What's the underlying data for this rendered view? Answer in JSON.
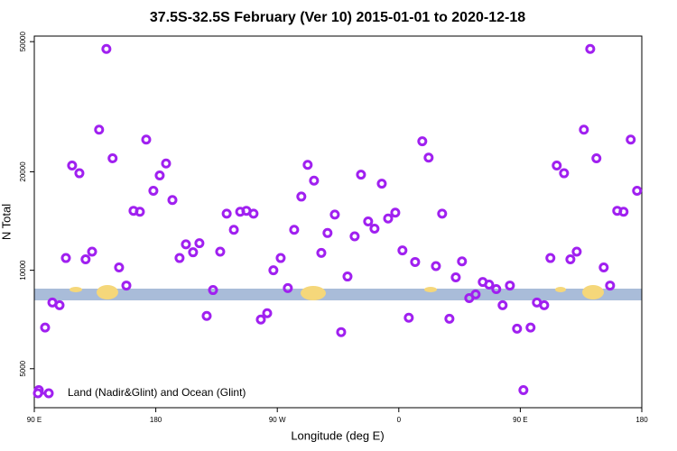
{
  "chart_data": {
    "type": "scatter",
    "title": "37.5S-32.5S February (Ver 10)   2015-01-01 to 2020-12-18",
    "x_label": "Longitude (deg E)",
    "y_label": "N Total",
    "log_y": true,
    "legend": "lower left",
    "xlim": [
      90,
      540
    ],
    "xticks": [
      {
        "value": 90,
        "label": "90 E"
      },
      180,
      {
        "value": 270,
        "label": "90 W"
      },
      {
        "value": 360,
        "label": "0"
      },
      {
        "value": 450,
        "label": "90 E"
      },
      {
        "value": 540,
        "label": "180"
      }
    ],
    "ylim": [
      3800,
      52000
    ],
    "yticks": [
      5000,
      10000,
      20000,
      50000
    ],
    "series": [
      {
        "name": "Land (Nadir&Glint) and Ocean (Glint)",
        "color": "#a020f0",
        "x": [
          93.3,
          98,
          103.4,
          108.7,
          113.4,
          118,
          123.4,
          128,
          132.8,
          138,
          143.4,
          148,
          152.8,
          158.2,
          163.5,
          168.2,
          172.9,
          178.2,
          182.9,
          187.6,
          192.3,
          197.6,
          202.3,
          207.6,
          212.3,
          217.7,
          222.4,
          227.7,
          232.5,
          237.8,
          242.5,
          247.1,
          252.4,
          257.8,
          262.5,
          267.1,
          272.5,
          277.8,
          282.5,
          287.8,
          292.5,
          297.2,
          302.6,
          307.2,
          312.6,
          317.3,
          322,
          327.3,
          332,
          337.3,
          342,
          347.4,
          352.1,
          357.4,
          362.7,
          367.4,
          372.1,
          377.4,
          382.1,
          387.5,
          392.1,
          397.5,
          402.2,
          406.8,
          412.2,
          416.9,
          422.2,
          426.9,
          432.2,
          436.9,
          442.3,
          447.6,
          452.3,
          457.6,
          462.3,
          467.7,
          472.3,
          477,
          482.4,
          487.1,
          491.8,
          497.1,
          501.8,
          506.4,
          511.8,
          516.5,
          521.8,
          526.5,
          531.8,
          536.5
        ],
        "values": [
          4300,
          6680,
          7970,
          7820,
          10900,
          20900,
          19800,
          10800,
          11400,
          26900,
          47500,
          22000,
          10200,
          8980,
          15200,
          15100,
          25100,
          17500,
          19500,
          21200,
          16400,
          10900,
          12000,
          11350,
          12100,
          7250,
          8700,
          11400,
          14900,
          13300,
          15100,
          15200,
          14900,
          7070,
          7390,
          10000,
          10900,
          8820,
          13300,
          16800,
          21000,
          18800,
          11300,
          13000,
          14800,
          6470,
          9570,
          12700,
          19600,
          14100,
          13400,
          18400,
          14400,
          15000,
          11500,
          7160,
          10600,
          24800,
          22100,
          10300,
          14900,
          7110,
          9510,
          10650,
          8220,
          8440,
          9210,
          9040,
          8760,
          7820,
          8980,
          6630,
          4300,
          6680,
          7970,
          7820,
          10900,
          20900,
          19800,
          10800,
          11400,
          26900,
          47500,
          22000,
          10200,
          8980,
          15200,
          15100,
          25100,
          17500
        ]
      }
    ]
  }
}
